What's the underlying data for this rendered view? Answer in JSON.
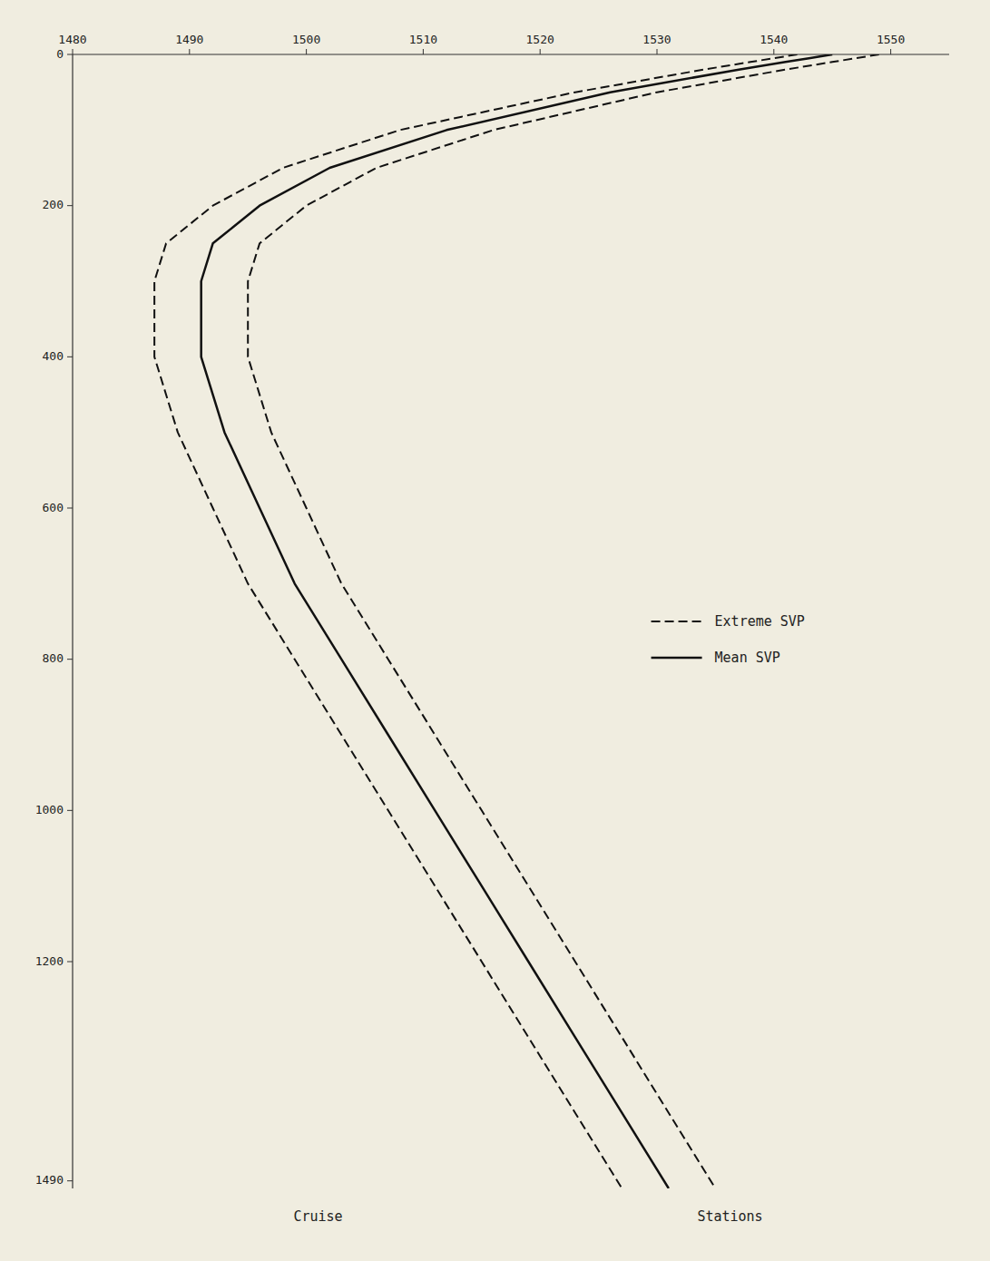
{
  "chart_data": {
    "type": "line",
    "xlim": [
      1480,
      1555
    ],
    "ylim": [
      0,
      1500
    ],
    "xticks": [
      1480,
      1490,
      1500,
      1510,
      1520,
      1530,
      1540,
      1550
    ],
    "yticks": [
      0,
      200,
      400,
      600,
      800,
      1000,
      1200,
      1490
    ],
    "grid": false,
    "legend": "right",
    "series": [
      {
        "name": "Extreme SVP",
        "color": "#111111",
        "line_style": "dashed",
        "x": [
          1542,
          1540,
          1538,
          1534,
          1523,
          1508,
          1498,
          1492,
          1488,
          1487,
          1487,
          1489,
          1492,
          1495,
          1499,
          1503,
          1507,
          1511,
          1515,
          1519,
          1523,
          1527
        ],
        "values": [
          0,
          5,
          10,
          20,
          50,
          100,
          150,
          200,
          250,
          300,
          400,
          500,
          600,
          700,
          800,
          900,
          1000,
          1100,
          1200,
          1300,
          1400,
          1500
        ]
      },
      {
        "name": "Extreme SVP",
        "color": "#111111",
        "line_style": "dashed",
        "x": [
          1549,
          1547,
          1545,
          1541,
          1530,
          1516,
          1506,
          1500,
          1496,
          1495,
          1495,
          1497,
          1500,
          1503,
          1507,
          1511,
          1515,
          1519,
          1523,
          1527,
          1531,
          1535
        ],
        "values": [
          0,
          5,
          10,
          20,
          50,
          100,
          150,
          200,
          250,
          300,
          400,
          500,
          600,
          700,
          800,
          900,
          1000,
          1100,
          1200,
          1300,
          1400,
          1500
        ]
      },
      {
        "name": "Mean SVP",
        "color": "#111111",
        "line_style": "solid",
        "x": [
          1545,
          1543,
          1541,
          1537,
          1526,
          1512,
          1502,
          1496,
          1492,
          1491,
          1491,
          1493,
          1496,
          1499,
          1503,
          1507,
          1511,
          1515,
          1519,
          1523,
          1527,
          1531
        ],
        "values": [
          0,
          5,
          10,
          20,
          50,
          100,
          150,
          200,
          250,
          300,
          400,
          500,
          600,
          700,
          800,
          900,
          1000,
          1100,
          1200,
          1300,
          1400,
          1500
        ]
      }
    ],
    "annotations": [
      {
        "text": "Cruise"
      },
      {
        "text": "Stations"
      }
    ]
  }
}
